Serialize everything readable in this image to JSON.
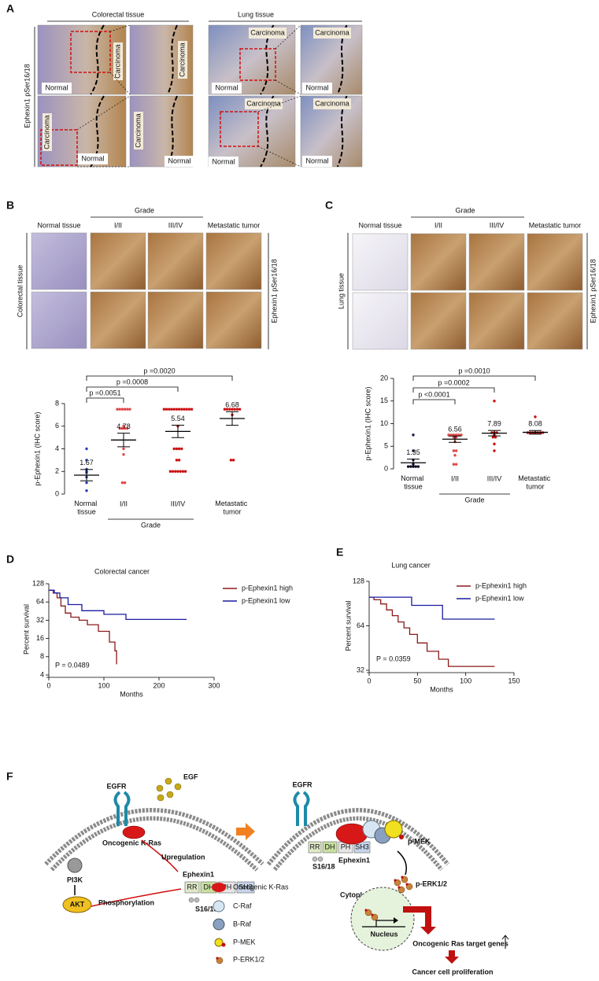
{
  "panel_labels": [
    "A",
    "B",
    "C",
    "D",
    "E",
    "F"
  ],
  "panel_a": {
    "col_titles": [
      "Colorectal tissue",
      "Lung tissue"
    ],
    "row_label": "Ephexin1 pSer16/18",
    "carcinoma": "Carcinoma",
    "normal": "Normal"
  },
  "panel_b": {
    "grade": "Grade",
    "columns": [
      "Normal tissue",
      "I/II",
      "III/IV",
      "Metastatic tumor"
    ],
    "row_label": "Colorectal tissue",
    "stain_label": "Ephexin1 pSer16/18"
  },
  "panel_c": {
    "grade": "Grade",
    "columns": [
      "Normal tissue",
      "I/II",
      "III/IV",
      "Metastatic tumor"
    ],
    "row_label": "Lung tissue",
    "stain_label": "Ephexin1 pSer16/18"
  },
  "panel_f": {
    "egf": "EGF",
    "egfr": "EGFR",
    "kras": "Oncogenic K-Ras",
    "pi3k": "PI3K",
    "akt": "AKT",
    "upregulation": "Upregulation",
    "ephexin1": "Ephexin1",
    "phosphorylation": "Phosphorylation",
    "domains": [
      "RR",
      "DH",
      "PH",
      "SH3"
    ],
    "site": "S16/18",
    "pmek": "p-MEK",
    "perk": "p-ERK1/2",
    "cytoplasm": "Cytoplasm",
    "nucleus": "Nucleus",
    "targets": "Oncogenic Ras target genes",
    "proliferation": "Cancer cell proliferation",
    "legend": [
      "Oncogenic K-Ras",
      "C-Raf",
      "B-Raf",
      "P-MEK",
      "P-ERK1/2"
    ]
  },
  "chart_data": [
    {
      "type": "dot",
      "y_label": "p-Ephexin1 (IHC score)",
      "categories": [
        "Normal tissue",
        "I/II",
        "III/IV",
        "Metastatic tumor"
      ],
      "group_label": "Grade",
      "means": [
        1.67,
        4.78,
        5.54,
        6.68
      ],
      "sem": [
        0.5,
        0.6,
        0.55,
        0.6
      ],
      "points": [
        [
          4,
          3,
          2.2,
          2,
          1.9,
          1.5,
          1,
          0.3
        ],
        [
          7.5,
          7.5,
          7.5,
          7.5,
          7.5,
          7.5,
          6,
          5.8,
          5.8,
          5.8,
          5.8,
          4,
          3.5,
          1,
          1
        ],
        [
          7.5,
          7.5,
          7.5,
          7.5,
          7.5,
          7.5,
          7.5,
          7.5,
          7.5,
          7.5,
          7.5,
          7.5,
          6,
          4,
          4,
          4,
          4,
          3,
          3,
          2,
          2,
          2,
          2,
          2,
          2,
          2
        ],
        [
          7.5,
          7.5,
          7.5,
          7.5,
          7.5,
          7.5,
          7.5,
          7,
          3,
          3
        ]
      ],
      "point_colors": [
        "#2a3fb0",
        "#e04848",
        "#cc1111",
        "#cc1111"
      ],
      "ylim": [
        0,
        8
      ],
      "yticks": [
        0,
        2,
        4,
        6,
        8
      ],
      "p_values": [
        "p =0.0051",
        "p =0.0008",
        "p =0.0020"
      ]
    },
    {
      "type": "dot",
      "y_label": "p-Ephexin1 (IHC score)",
      "categories": [
        "Normal tissue",
        "I/II",
        "III/IV",
        "Metastatic tumor"
      ],
      "group_label": "Grade",
      "means": [
        1.35,
        6.56,
        7.89,
        8.08
      ],
      "sem": [
        0.8,
        0.7,
        0.6,
        0.4
      ],
      "points": [
        [
          7.5,
          4,
          2,
          1,
          0.5,
          0.5,
          0.5,
          0.5,
          0.5
        ],
        [
          7.5,
          7.5,
          7.5,
          7.5,
          7.5,
          7.5,
          7,
          7,
          6,
          4,
          4,
          3,
          1,
          1
        ],
        [
          15,
          8,
          8,
          8,
          7.5,
          7,
          7,
          5.5,
          4
        ],
        [
          11.5,
          8,
          8,
          8,
          8,
          8,
          8,
          8
        ]
      ],
      "point_colors": [
        "#1a1a40",
        "#e04848",
        "#cc1111",
        "#cc1111"
      ],
      "ylim": [
        0,
        20
      ],
      "yticks": [
        0,
        5,
        10,
        15,
        20
      ],
      "p_values": [
        "p <0.0001",
        "p =0.0002",
        "p =0.0010"
      ]
    },
    {
      "type": "survival",
      "title": "Colorectal cancer",
      "x_label": "Months",
      "y_label": "Percent survival",
      "y_scale": "log2",
      "xlim": [
        0,
        300
      ],
      "xticks": [
        0,
        100,
        200,
        300
      ],
      "ylim": [
        4,
        128
      ],
      "yticks": [
        4,
        8,
        16,
        32,
        64,
        128
      ],
      "series": [
        {
          "name": "p-Ephexin1 high",
          "color": "#8b1a1a",
          "x": [
            0,
            8,
            8,
            15,
            15,
            22,
            22,
            30,
            30,
            40,
            40,
            55,
            55,
            70,
            70,
            90,
            90,
            110,
            110,
            120,
            120,
            123,
            123
          ],
          "values": [
            100,
            100,
            90,
            90,
            75,
            75,
            55,
            55,
            42,
            42,
            36,
            36,
            32,
            32,
            27,
            27,
            21,
            21,
            14,
            14,
            10,
            10,
            6
          ]
        },
        {
          "name": "p-Ephexin1 low",
          "color": "#1a1aa0",
          "x": [
            0,
            10,
            10,
            20,
            20,
            35,
            35,
            60,
            60,
            100,
            100,
            140,
            140,
            250
          ],
          "values": [
            100,
            100,
            90,
            90,
            75,
            75,
            58,
            58,
            46,
            46,
            40,
            40,
            33,
            33
          ]
        }
      ],
      "annotation": "P = 0.0489"
    },
    {
      "type": "survival",
      "title": "Lung cancer",
      "x_label": "Months",
      "y_label": "Percent survival",
      "y_scale": "log2",
      "xlim": [
        0,
        150
      ],
      "xticks": [
        0,
        50,
        100,
        150
      ],
      "ylim": [
        32,
        128
      ],
      "yticks": [
        32,
        64,
        128
      ],
      "series": [
        {
          "name": "p-Ephexin1 high",
          "color": "#8b1a1a",
          "x": [
            0,
            5,
            5,
            12,
            12,
            18,
            18,
            24,
            24,
            30,
            30,
            36,
            36,
            42,
            42,
            50,
            50,
            60,
            60,
            72,
            72,
            82,
            82,
            130
          ],
          "values": [
            100,
            100,
            96,
            96,
            90,
            90,
            82,
            82,
            75,
            75,
            68,
            68,
            62,
            62,
            56,
            56,
            49,
            49,
            43,
            43,
            38,
            38,
            34,
            34
          ]
        },
        {
          "name": "p-Ephexin1 low",
          "color": "#1a1aa0",
          "x": [
            0,
            44,
            44,
            76,
            76,
            130
          ],
          "values": [
            100,
            100,
            88,
            88,
            71,
            71
          ]
        }
      ],
      "annotation": "P = 0.0359"
    }
  ]
}
